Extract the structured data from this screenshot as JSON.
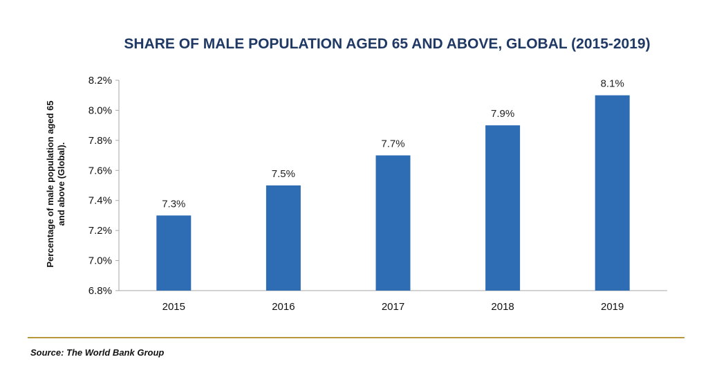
{
  "chart_data": {
    "type": "bar",
    "title": "SHARE OF MALE POPULATION AGED 65 AND ABOVE, GLOBAL (2015-2019)",
    "ylabel_lines": [
      "Percentage of male population aged 65",
      "and above (Global)."
    ],
    "xlabel": "",
    "categories": [
      "2015",
      "2016",
      "2017",
      "2018",
      "2019"
    ],
    "values": [
      7.3,
      7.5,
      7.7,
      7.9,
      8.1
    ],
    "data_labels": [
      "7.3%",
      "7.5%",
      "7.7%",
      "7.9%",
      "8.1%"
    ],
    "ylim": [
      6.8,
      8.2
    ],
    "yticks": [
      6.8,
      7.0,
      7.2,
      7.4,
      7.6,
      7.8,
      8.0,
      8.2
    ],
    "ytick_labels": [
      "6.8%",
      "7.0%",
      "7.2%",
      "7.4%",
      "7.6%",
      "7.8%",
      "8.0%",
      "8.2%"
    ],
    "grid": false,
    "legend": "none",
    "colors": {
      "bar": "#2e6db4",
      "axis": "#a6a6a6",
      "title": "#1f3864",
      "divider": "#b8963a"
    }
  },
  "footer": {
    "source": "Source: The World Bank Group"
  }
}
